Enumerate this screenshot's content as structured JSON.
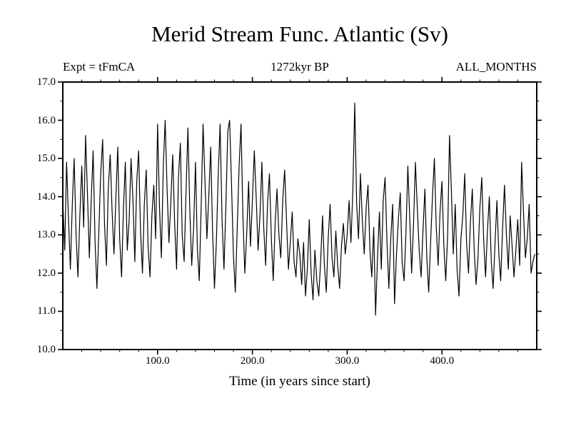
{
  "title": "Merid Stream Func. Atlantic (Sv)",
  "annotations": {
    "left": "Expt = tFmCA",
    "center": "1272kyr BP",
    "right": "ALL_MONTHS"
  },
  "chart_data": {
    "type": "line",
    "title": "Merid Stream Func. Atlantic (Sv)",
    "xlabel": "Time (in years since start)",
    "ylabel": "",
    "xlim": [
      0,
      500
    ],
    "ylim": [
      10.0,
      17.0
    ],
    "x_ticks": [
      100,
      200,
      300,
      400
    ],
    "x_tick_labels": [
      "100.0",
      "200.0",
      "300.0",
      "400.0"
    ],
    "y_ticks": [
      10,
      11,
      12,
      13,
      14,
      15,
      16,
      17
    ],
    "y_tick_labels": [
      "10.0",
      "11.0",
      "12.0",
      "13.0",
      "14.0",
      "15.0",
      "16.0",
      "17.0"
    ],
    "x_minor_step": 20,
    "y_minor_step": 0.5,
    "grid": false,
    "legend": "none",
    "line_color": "#000000",
    "background": "#ffffff",
    "series": [
      {
        "name": "Merid Stream Func. Atlantic",
        "units": "Sv",
        "x_start": 0,
        "x_step": 2,
        "values": [
          13.9,
          12.6,
          14.9,
          13.4,
          12.1,
          13.8,
          15.0,
          13.0,
          11.9,
          13.5,
          14.8,
          13.2,
          15.6,
          14.1,
          12.4,
          13.9,
          15.2,
          12.8,
          11.6,
          13.1,
          14.6,
          15.5,
          13.3,
          12.2,
          14.2,
          15.1,
          13.6,
          12.5,
          14.0,
          15.3,
          12.9,
          11.9,
          13.7,
          14.9,
          12.6,
          13.4,
          15.0,
          13.9,
          12.3,
          14.4,
          15.2,
          13.1,
          12.0,
          13.8,
          14.7,
          12.7,
          11.9,
          13.5,
          14.3,
          12.9,
          15.9,
          13.7,
          12.4,
          14.8,
          16.0,
          14.2,
          12.8,
          13.9,
          15.1,
          13.3,
          12.1,
          14.5,
          15.4,
          13.0,
          12.3,
          14.1,
          15.8,
          13.6,
          12.2,
          13.2,
          14.9,
          12.6,
          11.8,
          13.8,
          15.9,
          14.4,
          12.9,
          14.0,
          15.3,
          13.1,
          11.6,
          12.8,
          14.6,
          15.9,
          13.4,
          12.1,
          13.7,
          15.7,
          16.0,
          14.3,
          12.5,
          11.5,
          13.2,
          14.8,
          15.9,
          13.5,
          12.0,
          13.0,
          14.4,
          12.7,
          13.9,
          15.2,
          14.0,
          12.6,
          13.5,
          14.9,
          13.2,
          12.2,
          13.8,
          14.6,
          12.9,
          11.8,
          13.3,
          14.2,
          13.0,
          12.4,
          13.9,
          14.7,
          13.4,
          12.1,
          12.8,
          13.6,
          12.3,
          11.9,
          12.9,
          12.5,
          11.7,
          12.8,
          11.4,
          12.1,
          13.4,
          12.0,
          11.3,
          12.6,
          11.8,
          11.4,
          12.3,
          13.5,
          12.2,
          11.5,
          12.9,
          13.8,
          12.4,
          11.9,
          13.1,
          12.2,
          11.6,
          12.7,
          13.3,
          12.5,
          13.0,
          13.9,
          12.8,
          14.2,
          16.45,
          13.8,
          12.9,
          14.6,
          13.4,
          12.5,
          13.7,
          14.3,
          12.6,
          11.9,
          13.2,
          10.9,
          12.4,
          13.6,
          12.1,
          13.9,
          14.5,
          12.8,
          11.6,
          12.9,
          13.8,
          11.2,
          12.5,
          13.4,
          14.1,
          12.3,
          11.8,
          13.0,
          14.8,
          13.5,
          12.0,
          13.3,
          14.9,
          13.7,
          12.6,
          11.9,
          13.1,
          14.2,
          12.4,
          11.5,
          12.8,
          14.0,
          15.0,
          13.2,
          12.2,
          13.6,
          14.4,
          12.7,
          11.8,
          13.0,
          15.6,
          14.1,
          12.5,
          13.8,
          12.1,
          11.4,
          12.9,
          13.5,
          14.6,
          12.8,
          12.0,
          13.3,
          14.2,
          12.6,
          11.7,
          12.4,
          13.7,
          14.5,
          12.9,
          11.9,
          13.1,
          14.0,
          12.3,
          11.6,
          12.8,
          13.9,
          12.5,
          11.8,
          13.2,
          14.3,
          13.0,
          12.1,
          13.5,
          12.7,
          11.9,
          12.6,
          13.4,
          12.2,
          14.9,
          13.6,
          12.4,
          12.9,
          13.8,
          12.0,
          12.3,
          12.5
        ]
      }
    ]
  }
}
